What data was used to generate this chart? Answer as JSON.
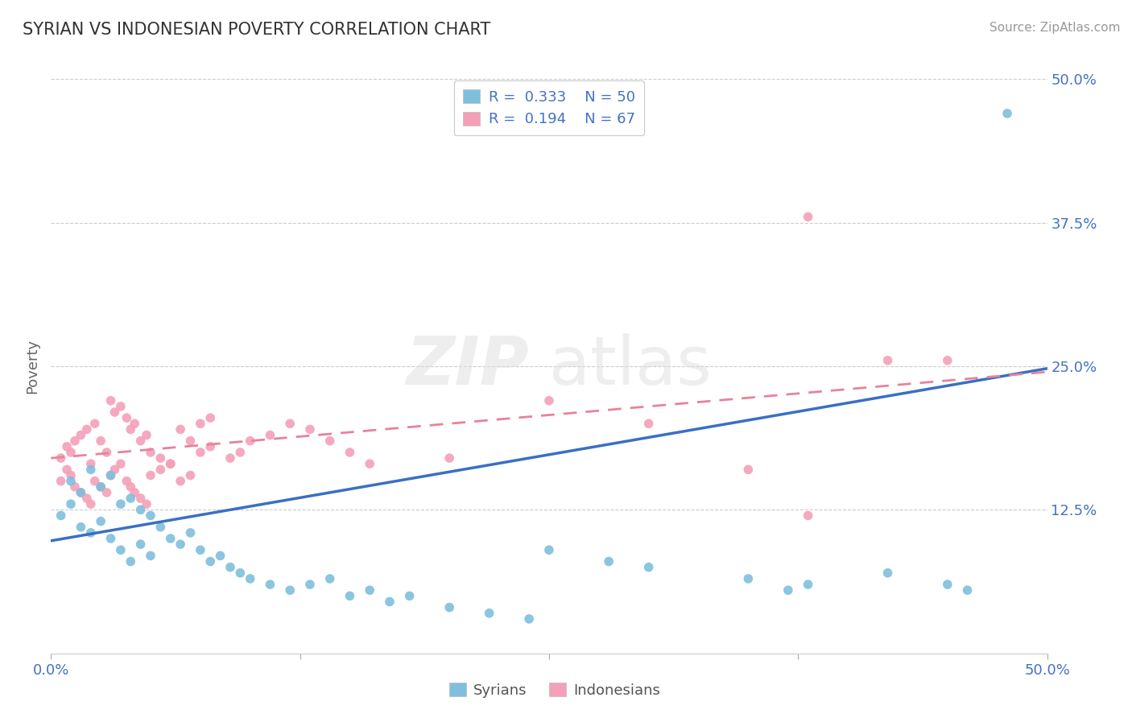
{
  "title": "SYRIAN VS INDONESIAN POVERTY CORRELATION CHART",
  "source": "Source: ZipAtlas.com",
  "watermark_zip": "ZIP",
  "watermark_atlas": "atlas",
  "ylabel": "Poverty",
  "xlim": [
    0.0,
    0.5
  ],
  "ylim": [
    0.0,
    0.5
  ],
  "legend_r1": "R = 0.333",
  "legend_n1": "N = 50",
  "legend_r2": "R = 0.194",
  "legend_n2": "N = 67",
  "syrians_color": "#7fbfdd",
  "indonesians_color": "#f4a0b8",
  "line_color_syrians": "#3a6fc4",
  "line_color_indonesians": "#e8829a",
  "syrians_x": [
    0.005,
    0.01,
    0.015,
    0.02,
    0.025,
    0.03,
    0.035,
    0.04,
    0.045,
    0.05,
    0.01,
    0.015,
    0.02,
    0.025,
    0.03,
    0.035,
    0.04,
    0.045,
    0.05,
    0.055,
    0.06,
    0.065,
    0.07,
    0.075,
    0.08,
    0.085,
    0.09,
    0.095,
    0.1,
    0.11,
    0.12,
    0.13,
    0.14,
    0.15,
    0.16,
    0.17,
    0.18,
    0.2,
    0.22,
    0.24,
    0.35,
    0.37,
    0.38,
    0.42,
    0.45,
    0.46,
    0.25,
    0.28,
    0.3,
    0.48
  ],
  "syrians_y": [
    0.12,
    0.13,
    0.11,
    0.105,
    0.115,
    0.1,
    0.09,
    0.08,
    0.095,
    0.085,
    0.15,
    0.14,
    0.16,
    0.145,
    0.155,
    0.13,
    0.135,
    0.125,
    0.12,
    0.11,
    0.1,
    0.095,
    0.105,
    0.09,
    0.08,
    0.085,
    0.075,
    0.07,
    0.065,
    0.06,
    0.055,
    0.06,
    0.065,
    0.05,
    0.055,
    0.045,
    0.05,
    0.04,
    0.035,
    0.03,
    0.065,
    0.055,
    0.06,
    0.07,
    0.06,
    0.055,
    0.09,
    0.08,
    0.075,
    0.47
  ],
  "indonesians_x": [
    0.005,
    0.008,
    0.01,
    0.012,
    0.015,
    0.018,
    0.02,
    0.022,
    0.025,
    0.028,
    0.03,
    0.032,
    0.035,
    0.038,
    0.04,
    0.042,
    0.045,
    0.048,
    0.05,
    0.055,
    0.06,
    0.065,
    0.07,
    0.075,
    0.08,
    0.005,
    0.008,
    0.01,
    0.012,
    0.015,
    0.018,
    0.02,
    0.022,
    0.025,
    0.028,
    0.03,
    0.032,
    0.035,
    0.038,
    0.04,
    0.042,
    0.045,
    0.048,
    0.05,
    0.055,
    0.06,
    0.065,
    0.07,
    0.075,
    0.08,
    0.09,
    0.095,
    0.1,
    0.11,
    0.12,
    0.13,
    0.14,
    0.15,
    0.16,
    0.2,
    0.25,
    0.3,
    0.35,
    0.38,
    0.42,
    0.45,
    0.38
  ],
  "indonesians_y": [
    0.17,
    0.18,
    0.175,
    0.185,
    0.19,
    0.195,
    0.165,
    0.2,
    0.185,
    0.175,
    0.22,
    0.21,
    0.215,
    0.205,
    0.195,
    0.2,
    0.185,
    0.19,
    0.175,
    0.17,
    0.165,
    0.195,
    0.185,
    0.2,
    0.205,
    0.15,
    0.16,
    0.155,
    0.145,
    0.14,
    0.135,
    0.13,
    0.15,
    0.145,
    0.14,
    0.155,
    0.16,
    0.165,
    0.15,
    0.145,
    0.14,
    0.135,
    0.13,
    0.155,
    0.16,
    0.165,
    0.15,
    0.155,
    0.175,
    0.18,
    0.17,
    0.175,
    0.185,
    0.19,
    0.2,
    0.195,
    0.185,
    0.175,
    0.165,
    0.17,
    0.22,
    0.2,
    0.16,
    0.38,
    0.255,
    0.255,
    0.12
  ],
  "syrians_line_x": [
    0.0,
    0.5
  ],
  "syrians_line_y": [
    0.098,
    0.248
  ],
  "indonesians_line_x": [
    0.0,
    0.5
  ],
  "indonesians_line_y": [
    0.17,
    0.245
  ],
  "background_color": "#ffffff",
  "grid_color": "#cccccc",
  "tick_color": "#4472c4",
  "title_color": "#333333",
  "source_color": "#999999"
}
